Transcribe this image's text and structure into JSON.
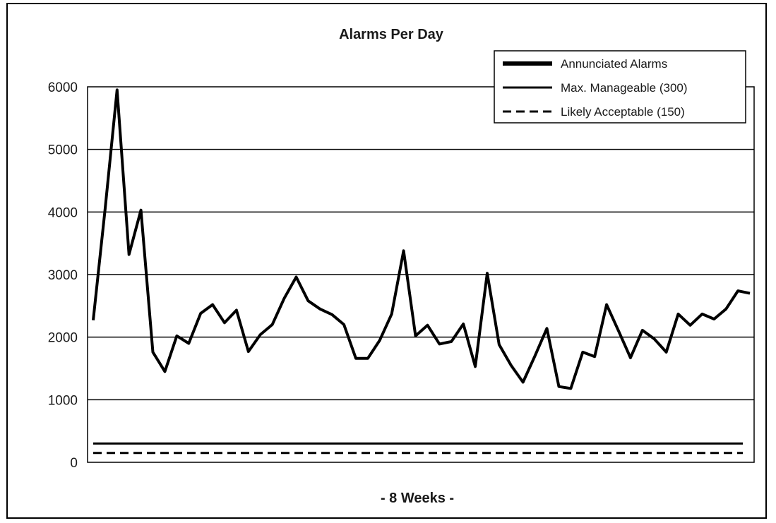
{
  "chart_data": {
    "type": "line",
    "title": "Alarms Per Day",
    "xlabel": "- 8 Weeks -",
    "ylabel": "",
    "ylim": [
      0,
      6000
    ],
    "yticks": [
      "0",
      "1000",
      "2000",
      "3000",
      "4000",
      "5000",
      "6000"
    ],
    "grid": true,
    "legend_position": "top-right",
    "series": [
      {
        "name": "Annunciated Alarms",
        "style": "thick-solid",
        "color": "#000000",
        "values": [
          2270,
          4050,
          5950,
          3320,
          4030,
          1760,
          1450,
          2020,
          1900,
          2380,
          2520,
          2230,
          2430,
          1770,
          2040,
          2200,
          2620,
          2960,
          2580,
          2450,
          2360,
          2200,
          1660,
          1660,
          1950,
          2370,
          3380,
          2020,
          2190,
          1890,
          1930,
          2210,
          1530,
          3020,
          1880,
          1550,
          1280,
          1700,
          2140,
          1210,
          1180,
          1760,
          1690,
          2520,
          2100,
          1670,
          2110,
          1970,
          1760,
          2370,
          2190,
          2370,
          2290,
          2450,
          2740,
          2700
        ]
      },
      {
        "name": "Max. Manageable (300)",
        "style": "solid",
        "color": "#000000",
        "constant": 300
      },
      {
        "name": "Likely Acceptable (150)",
        "style": "dashed",
        "color": "#000000",
        "constant": 150
      }
    ]
  }
}
